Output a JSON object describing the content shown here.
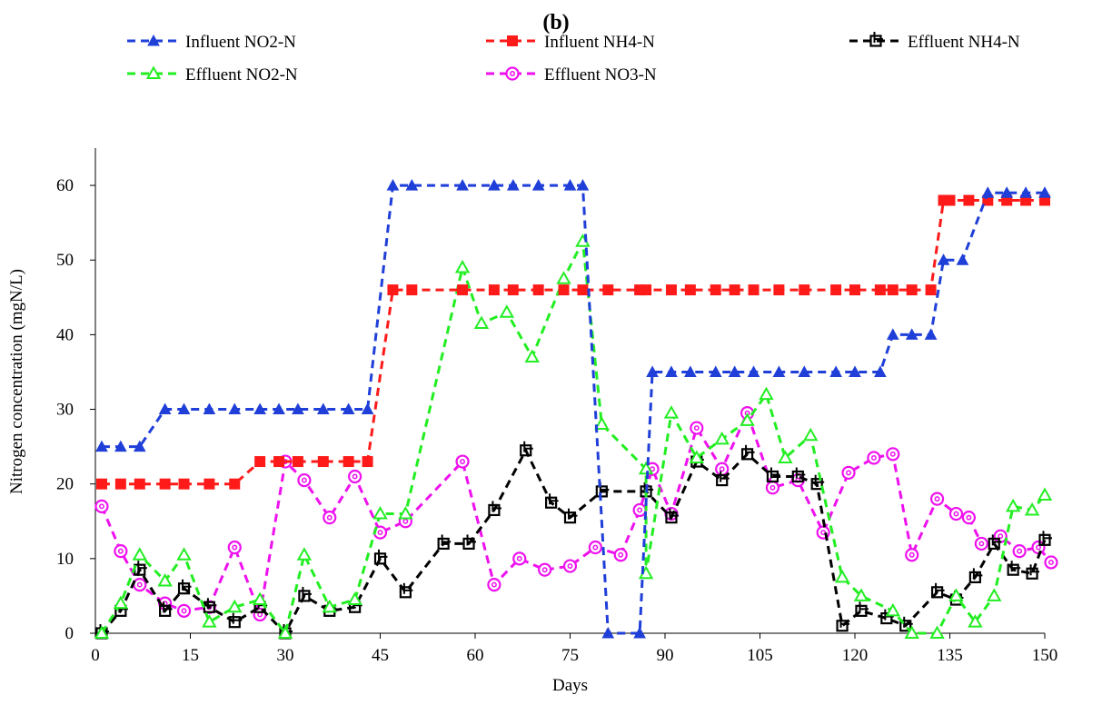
{
  "chart_data": {
    "type": "line",
    "title": "(b)",
    "xlabel": "Days",
    "ylabel": "Nitrogen concentration (mgN/L)",
    "xlim": [
      0,
      150
    ],
    "ylim": [
      0,
      65
    ],
    "xticks": [
      0,
      15,
      30,
      45,
      60,
      75,
      90,
      105,
      120,
      135,
      150
    ],
    "yticks": [
      0,
      10,
      20,
      30,
      40,
      50,
      60
    ],
    "grid": false,
    "legend_position": "top",
    "series": [
      {
        "name": "Influent NO2-N",
        "color": "#1f3fd8",
        "marker": "triangle-filled",
        "points": [
          [
            1,
            25
          ],
          [
            4,
            25
          ],
          [
            7,
            25
          ],
          [
            11,
            30
          ],
          [
            14,
            30
          ],
          [
            18,
            30
          ],
          [
            22,
            30
          ],
          [
            26,
            30
          ],
          [
            29,
            30
          ],
          [
            32,
            30
          ],
          [
            36,
            30
          ],
          [
            40,
            30
          ],
          [
            43,
            30
          ],
          [
            47,
            60
          ],
          [
            50,
            60
          ],
          [
            58,
            60
          ],
          [
            63,
            60
          ],
          [
            66,
            60
          ],
          [
            70,
            60
          ],
          [
            75,
            60
          ],
          [
            77,
            60
          ],
          [
            81,
            0
          ],
          [
            86,
            0
          ],
          [
            88,
            35
          ],
          [
            91,
            35
          ],
          [
            94,
            35
          ],
          [
            98,
            35
          ],
          [
            101,
            35
          ],
          [
            104,
            35
          ],
          [
            108,
            35
          ],
          [
            112,
            35
          ],
          [
            117,
            35
          ],
          [
            120,
            35
          ],
          [
            124,
            35
          ],
          [
            126,
            40
          ],
          [
            129,
            40
          ],
          [
            132,
            40
          ],
          [
            134,
            50
          ],
          [
            137,
            50
          ],
          [
            141,
            59
          ],
          [
            144,
            59
          ],
          [
            147,
            59
          ],
          [
            150,
            59
          ]
        ]
      },
      {
        "name": "Influent NH4-N",
        "color": "#ff1a1a",
        "marker": "square-filled",
        "points": [
          [
            1,
            20
          ],
          [
            4,
            20
          ],
          [
            7,
            20
          ],
          [
            11,
            20
          ],
          [
            14,
            20
          ],
          [
            18,
            20
          ],
          [
            22,
            20
          ],
          [
            26,
            23
          ],
          [
            29,
            23
          ],
          [
            32,
            23
          ],
          [
            36,
            23
          ],
          [
            40,
            23
          ],
          [
            43,
            23
          ],
          [
            47,
            46
          ],
          [
            50,
            46
          ],
          [
            58,
            46
          ],
          [
            63,
            46
          ],
          [
            66,
            46
          ],
          [
            70,
            46
          ],
          [
            74,
            46
          ],
          [
            77,
            46
          ],
          [
            81,
            46
          ],
          [
            86,
            46
          ],
          [
            87,
            46
          ],
          [
            91,
            46
          ],
          [
            94,
            46
          ],
          [
            98,
            46
          ],
          [
            101,
            46
          ],
          [
            104,
            46
          ],
          [
            108,
            46
          ],
          [
            112,
            46
          ],
          [
            117,
            46
          ],
          [
            120,
            46
          ],
          [
            124,
            46
          ],
          [
            126,
            46
          ],
          [
            129,
            46
          ],
          [
            132,
            46
          ],
          [
            134,
            58
          ],
          [
            135,
            58
          ],
          [
            138,
            58
          ],
          [
            141,
            58
          ],
          [
            144,
            58
          ],
          [
            147,
            58
          ],
          [
            150,
            58
          ]
        ]
      },
      {
        "name": "Effluent NH4-N",
        "color": "#000000",
        "marker": "square-open",
        "points": [
          [
            1,
            0
          ],
          [
            4,
            3
          ],
          [
            7,
            8.5
          ],
          [
            11,
            3
          ],
          [
            14,
            6
          ],
          [
            18,
            3.5
          ],
          [
            22,
            1.5
          ],
          [
            26,
            3.5
          ],
          [
            30,
            0
          ],
          [
            33,
            5
          ],
          [
            37,
            3
          ],
          [
            41,
            3.5
          ],
          [
            45,
            10
          ],
          [
            49,
            5.5
          ],
          [
            55,
            12
          ],
          [
            59,
            12
          ],
          [
            63,
            16.5
          ],
          [
            68,
            24.5
          ],
          [
            72,
            17.5
          ],
          [
            75,
            15.5
          ],
          [
            80,
            19
          ],
          [
            87,
            19
          ],
          [
            91,
            15.5
          ],
          [
            95,
            23
          ],
          [
            99,
            20.5
          ],
          [
            103,
            24
          ],
          [
            107,
            21
          ],
          [
            111,
            21
          ],
          [
            114,
            20
          ],
          [
            118,
            1
          ],
          [
            121,
            3
          ],
          [
            125,
            2
          ],
          [
            128,
            1
          ],
          [
            133,
            5.5
          ],
          [
            136,
            4.5
          ],
          [
            139,
            7.5
          ],
          [
            142,
            12
          ],
          [
            145,
            8.5
          ],
          [
            148,
            8
          ],
          [
            150,
            12.5
          ]
        ]
      },
      {
        "name": "Effluent NO2-N",
        "color": "#22ee22",
        "marker": "triangle-open",
        "points": [
          [
            1,
            0
          ],
          [
            4,
            4
          ],
          [
            7,
            10.5
          ],
          [
            11,
            7
          ],
          [
            14,
            10.5
          ],
          [
            18,
            1.5
          ],
          [
            22,
            3.5
          ],
          [
            26,
            4.5
          ],
          [
            30,
            0
          ],
          [
            33,
            10.5
          ],
          [
            37,
            3.5
          ],
          [
            41,
            4.5
          ],
          [
            45,
            16
          ],
          [
            49,
            16
          ],
          [
            58,
            49
          ],
          [
            61,
            41.5
          ],
          [
            65,
            43
          ],
          [
            69,
            37
          ],
          [
            74,
            47.5
          ],
          [
            77,
            52.5
          ],
          [
            80,
            28
          ],
          [
            87,
            22
          ],
          [
            87,
            8
          ],
          [
            91,
            29.5
          ],
          [
            95,
            23.5
          ],
          [
            99,
            26
          ],
          [
            103,
            28.5
          ],
          [
            106,
            32
          ],
          [
            109,
            23.5
          ],
          [
            113,
            26.5
          ],
          [
            118,
            7.5
          ],
          [
            121,
            5
          ],
          [
            126,
            3
          ],
          [
            129,
            0
          ],
          [
            133,
            0
          ],
          [
            136,
            5
          ],
          [
            139,
            1.5
          ],
          [
            142,
            5
          ],
          [
            145,
            17
          ],
          [
            148,
            16.5
          ],
          [
            150,
            18.5
          ]
        ]
      },
      {
        "name": "Effluent NO3-N",
        "color": "#ee11ee",
        "marker": "circle-open",
        "points": [
          [
            1,
            17
          ],
          [
            4,
            11
          ],
          [
            7,
            6.5
          ],
          [
            11,
            4
          ],
          [
            14,
            3
          ],
          [
            18,
            3.5
          ],
          [
            22,
            11.5
          ],
          [
            26,
            2.5
          ],
          [
            30,
            23
          ],
          [
            33,
            20.5
          ],
          [
            37,
            15.5
          ],
          [
            41,
            21
          ],
          [
            45,
            13.5
          ],
          [
            49,
            15
          ],
          [
            58,
            23
          ],
          [
            63,
            6.5
          ],
          [
            67,
            10
          ],
          [
            71,
            8.5
          ],
          [
            75,
            9
          ],
          [
            79,
            11.5
          ],
          [
            83,
            10.5
          ],
          [
            86,
            16.5
          ],
          [
            88,
            22
          ],
          [
            91,
            16
          ],
          [
            95,
            27.5
          ],
          [
            99,
            22
          ],
          [
            103,
            29.5
          ],
          [
            107,
            19.5
          ],
          [
            111,
            20.5
          ],
          [
            115,
            13.5
          ],
          [
            119,
            21.5
          ],
          [
            123,
            23.5
          ],
          [
            126,
            24
          ],
          [
            129,
            10.5
          ],
          [
            133,
            18
          ],
          [
            136,
            16
          ],
          [
            138,
            15.5
          ],
          [
            140,
            12
          ],
          [
            143,
            13
          ],
          [
            146,
            11
          ],
          [
            149,
            11.5
          ],
          [
            151,
            9.5
          ]
        ]
      }
    ]
  }
}
